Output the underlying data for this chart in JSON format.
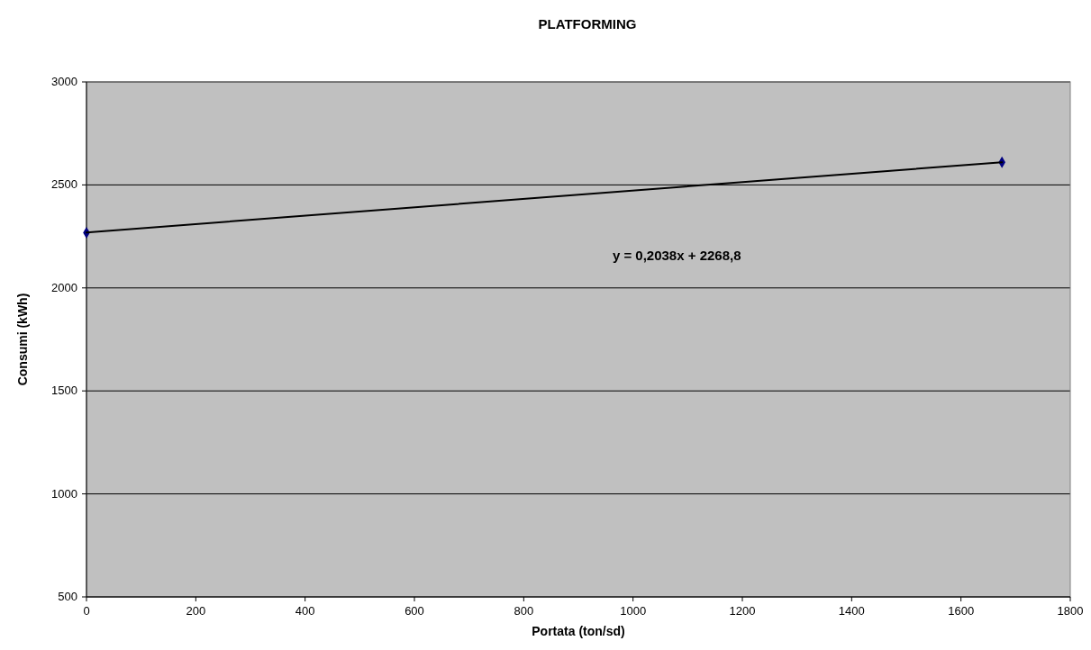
{
  "chart_data": {
    "type": "scatter",
    "title": "PLATFORMING",
    "xlabel": "Portata (ton/sd)",
    "ylabel": "Consumi (kWh)",
    "series": [
      {
        "color": "#000080",
        "values": [
          2268,
          2610
        ],
        "marker": "diamond"
      },
      {
        "type": "line",
        "color": "#000000",
        "values": [
          2269,
          2610
        ],
        "marker": "none",
        "line_style": "solid"
      }
    ],
    "annotations": [
      "y = 0,2038x + 2268,8"
    ],
    "xlim": [
      0,
      1800
    ],
    "xticks": [
      0,
      200,
      400,
      600,
      800,
      1000,
      1200,
      1400,
      1600,
      1800
    ],
    "ylim": [
      500,
      3000
    ],
    "yticks": [
      500,
      1000,
      1500,
      2000,
      2500,
      3000
    ],
    "x": [
      0,
      1675
    ],
    "grid": "y"
  }
}
